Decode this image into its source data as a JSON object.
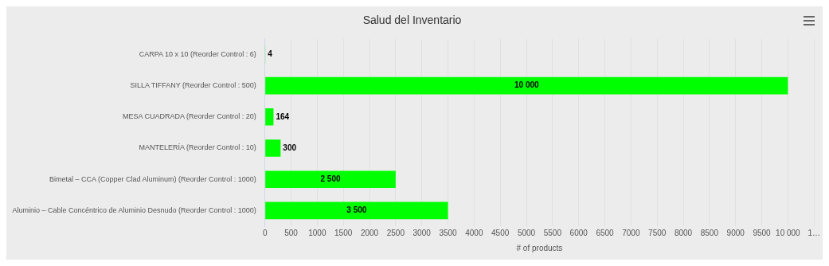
{
  "chart_data": {
    "type": "bar",
    "orientation": "horizontal",
    "title": "Salud del Inventario",
    "xlabel": "# of products",
    "categories": [
      "CARPA 10 x 10 (Reorder Control : 6)",
      "SILLA TIFFANY (Reorder Control : 500)",
      "MESA CUADRADA (Reorder Control : 20)",
      "MANTELERÍA (Reorder Control : 10)",
      "Bimetal – CCA (Copper Clad Aluminum) (Reorder Control : 1000)",
      "Aluminio – Cable Concéntrico de Aluminio Desnudo (Reorder Control : 1000)"
    ],
    "values": [
      4,
      10000,
      164,
      300,
      2500,
      3500
    ],
    "value_labels": [
      "4",
      "10 000",
      "164",
      "300",
      "2 500",
      "3 500"
    ],
    "color": "#00ff00",
    "xlim": [
      0,
      10500
    ],
    "xticks": [
      0,
      500,
      1000,
      1500,
      2000,
      2500,
      3000,
      3500,
      4000,
      4500,
      5000,
      5500,
      6000,
      6500,
      7000,
      7500,
      8000,
      8500,
      9000,
      9500,
      {
        "value": 10000,
        "label": "10 000"
      },
      {
        "value": 10500,
        "label": "1…"
      }
    ],
    "grid": "x",
    "legend": false
  }
}
